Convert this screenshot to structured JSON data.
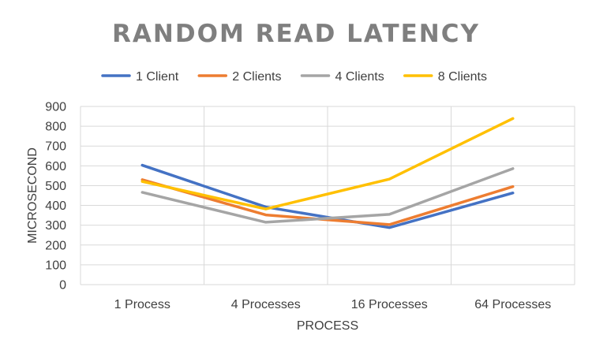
{
  "chart_data": {
    "type": "line",
    "title": "RANDOM READ LATENCY",
    "xlabel": "PROCESS",
    "ylabel": "MICROSECOND",
    "categories": [
      "1 Process",
      "4 Processes",
      "16 Processes",
      "64 Processes"
    ],
    "ylim": [
      0,
      900
    ],
    "yticks": [
      0,
      100,
      200,
      300,
      400,
      500,
      600,
      700,
      800,
      900
    ],
    "grid": true,
    "legend_position": "top",
    "series": [
      {
        "name": "1 Client",
        "color": "#4472c4",
        "values": [
          603,
          392,
          288,
          463
        ]
      },
      {
        "name": "2 Clients",
        "color": "#ed7d31",
        "values": [
          530,
          352,
          303,
          495
        ]
      },
      {
        "name": "4 Clients",
        "color": "#a5a5a5",
        "values": [
          466,
          315,
          355,
          586
        ]
      },
      {
        "name": "8 Clients",
        "color": "#ffc000",
        "values": [
          521,
          382,
          533,
          839
        ]
      }
    ]
  }
}
